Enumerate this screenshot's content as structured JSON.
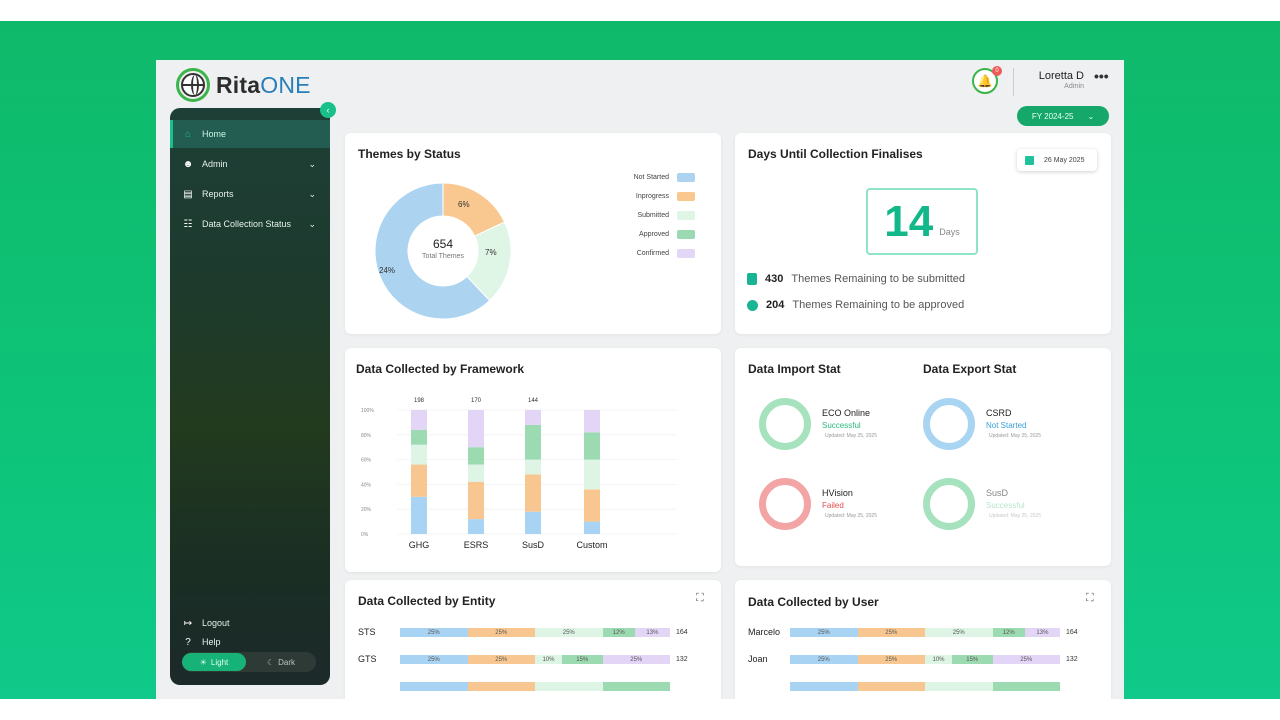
{
  "brand": {
    "name_bold": "Rita",
    "name_light": "ONE"
  },
  "header": {
    "notifications": "0",
    "user_name": "Loretta D",
    "user_role": "Admin",
    "more": "•••",
    "fy_label": "FY 2024-25"
  },
  "sidebar": {
    "items": [
      {
        "label": "Home",
        "icon": "home-icon",
        "active": true,
        "glyph": "⌂"
      },
      {
        "label": "Admin",
        "icon": "user-admin-icon",
        "glyph": "☻"
      },
      {
        "label": "Reports",
        "icon": "document-icon",
        "glyph": "▤"
      },
      {
        "label": "Data Collection Status",
        "icon": "data-collection-icon",
        "glyph": "☷"
      }
    ],
    "help": "Help",
    "logout": "Logout",
    "light": "Light",
    "dark": "Dark"
  },
  "themes": {
    "title": "Themes by Status",
    "total": "654",
    "total_label": "Total Themes",
    "slices": [
      {
        "name": "Not Started",
        "pct": 63,
        "label": "",
        "color": "#acd4f1"
      },
      {
        "name": "Inprogress",
        "pct": 6,
        "label": "6%",
        "color": "#f9c890"
      },
      {
        "name": "Submitted",
        "pct": 7,
        "label": "7%",
        "color": "#dff5e5"
      },
      {
        "name": "Approved",
        "pct": 0,
        "label": "",
        "color": "#9ad9b1"
      },
      {
        "name": "Confirmed",
        "pct": 0,
        "label": "",
        "color": "#e4d6f7"
      }
    ],
    "outer_label": "24%"
  },
  "days": {
    "title": "Days Until Collection Finalises",
    "date": "26 May 2025",
    "value": "14",
    "unit": "Days",
    "remaining": [
      {
        "count": "430",
        "text": "Themes Remaining to be submitted"
      },
      {
        "count": "204",
        "text": "Themes Remaining to be approved"
      }
    ]
  },
  "framework": {
    "title": "Data Collected by Framework",
    "chart_data": {
      "type": "bar",
      "categories": [
        "GHG",
        "ESRS",
        "SusD",
        "Custom"
      ],
      "totals": [
        "198",
        "170",
        "144",
        ""
      ],
      "ylabels": [
        "100%",
        "80%",
        "60%",
        "40%",
        "20%",
        "0%"
      ],
      "series": [
        {
          "color": "#a9d3f2",
          "values": [
            30,
            12,
            18,
            10
          ]
        },
        {
          "color": "#f8c791",
          "values": [
            26,
            30,
            30,
            26
          ]
        },
        {
          "color": "#def4e4",
          "values": [
            16,
            14,
            12,
            24
          ]
        },
        {
          "color": "#9cdab2",
          "values": [
            12,
            14,
            28,
            22
          ]
        },
        {
          "color": "#e3d5f6",
          "values": [
            16,
            30,
            12,
            18
          ]
        }
      ]
    }
  },
  "imports": {
    "title": "Data Import Stat",
    "items": [
      {
        "name": "ECO Online",
        "status": "Successful",
        "status_color": "#2bb87e",
        "ring": "#a6e2bd",
        "updated": "Updated: May 25, 2025"
      },
      {
        "name": "HVision",
        "status": "Failed",
        "status_color": "#e24e4e",
        "ring": "#f3a5a5",
        "updated": "Updated: May 25, 2025"
      }
    ]
  },
  "exports": {
    "title": "Data Export Stat",
    "items": [
      {
        "name": "CSRD",
        "status": "Not Started",
        "status_color": "#3b9fd8",
        "ring": "#a9d5f2",
        "updated": "Updated: May 25, 2025"
      },
      {
        "name": "SusD",
        "status": "Successful",
        "status_color": "#b6e6cc",
        "ring": "#a6e2bd",
        "updated": "Updated: May 25, 2025",
        "faded": true
      }
    ]
  },
  "entity": {
    "title": "Data Collected by Entity",
    "rows": [
      {
        "label": "STS",
        "total": "164",
        "segs": [
          [
            "25%",
            25
          ],
          [
            "25%",
            25
          ],
          [
            "25%",
            25
          ],
          [
            "12%",
            12
          ],
          [
            "13%",
            13
          ]
        ]
      },
      {
        "label": "GTS",
        "total": "132",
        "segs": [
          [
            "25%",
            25
          ],
          [
            "25%",
            25
          ],
          [
            "10%",
            10
          ],
          [
            "15%",
            15
          ],
          [
            "25%",
            25
          ]
        ]
      },
      {
        "label": "",
        "total": "",
        "segs": [
          [
            "",
            25
          ],
          [
            "",
            25
          ],
          [
            "",
            25
          ],
          [
            "",
            25
          ]
        ]
      }
    ]
  },
  "byuser": {
    "title": "Data Collected by User",
    "rows": [
      {
        "label": "Marcelo",
        "total": "164",
        "segs": [
          [
            "25%",
            25
          ],
          [
            "25%",
            25
          ],
          [
            "25%",
            25
          ],
          [
            "12%",
            12
          ],
          [
            "13%",
            13
          ]
        ]
      },
      {
        "label": "Joan",
        "total": "132",
        "segs": [
          [
            "25%",
            25
          ],
          [
            "25%",
            25
          ],
          [
            "10%",
            10
          ],
          [
            "15%",
            15
          ],
          [
            "25%",
            25
          ]
        ]
      },
      {
        "label": "",
        "total": "",
        "segs": [
          [
            "",
            25
          ],
          [
            "",
            25
          ],
          [
            "",
            25
          ],
          [
            "",
            25
          ]
        ]
      }
    ]
  },
  "segcolors": [
    "#a9d3f2",
    "#f8c791",
    "#def4e4",
    "#9cdab2",
    "#e3d5f6"
  ]
}
